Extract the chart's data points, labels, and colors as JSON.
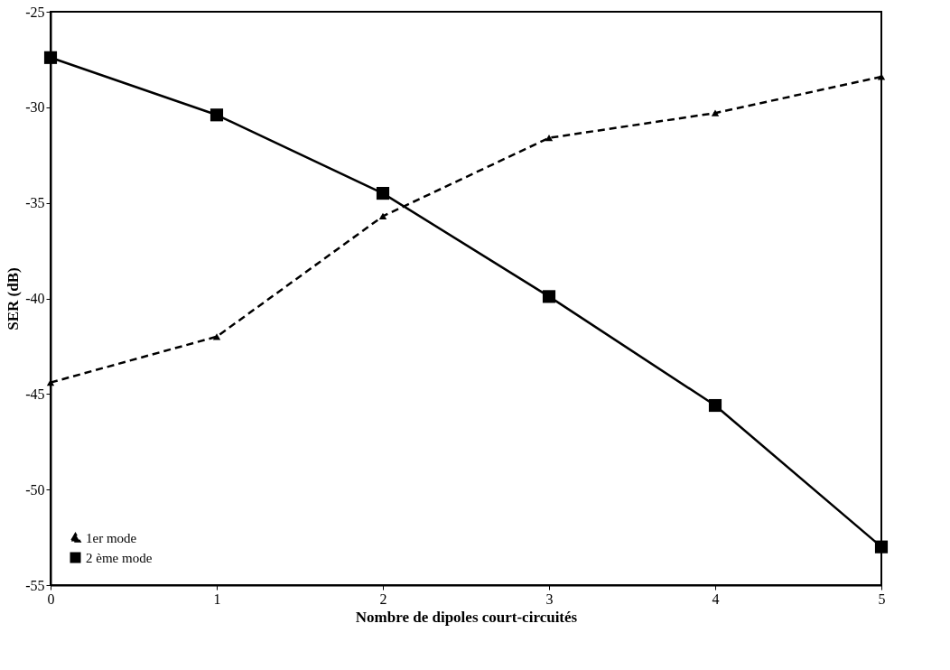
{
  "chart_data": {
    "type": "line",
    "xlabel": "Nombre de dipoles court-circuités",
    "ylabel": "SER (dB)",
    "x": [
      0,
      1,
      2,
      3,
      4,
      5
    ],
    "series": [
      {
        "name": "1er mode",
        "color": "#000000",
        "marker": "triangle",
        "line_style": "dashed",
        "values": [
          -44.4,
          -42.0,
          -35.7,
          -31.6,
          -30.3,
          -28.4
        ]
      },
      {
        "name": "2 ème mode",
        "color": "#000000",
        "marker": "square",
        "line_style": "solid",
        "values": [
          -27.4,
          -30.4,
          -34.5,
          -39.9,
          -45.6,
          -53.0
        ]
      }
    ],
    "xlim": [
      0,
      5
    ],
    "xticks": [
      0,
      1,
      2,
      3,
      4,
      5
    ],
    "ylim": [
      -55,
      -25
    ],
    "yticks": [
      -55,
      -50,
      -45,
      -40,
      -35,
      -30,
      -25
    ],
    "grid": false,
    "legend": "bottom left"
  }
}
